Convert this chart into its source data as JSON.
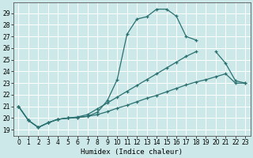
{
  "bg_color": "#cce8e8",
  "grid_color": "#b8d8d8",
  "line_color": "#2a7070",
  "xlabel": "Humidex (Indice chaleur)",
  "xlim": [
    -0.5,
    23.5
  ],
  "ylim": [
    18.5,
    29.9
  ],
  "x_ticks": [
    0,
    1,
    2,
    3,
    4,
    5,
    6,
    7,
    8,
    9,
    10,
    11,
    12,
    13,
    14,
    15,
    16,
    17,
    18,
    19,
    20,
    21,
    22,
    23
  ],
  "y_ticks": [
    19,
    20,
    21,
    22,
    23,
    24,
    25,
    26,
    27,
    28,
    29
  ],
  "line1_x": [
    0,
    1,
    2,
    3,
    4,
    5,
    6,
    7,
    8,
    9,
    10,
    11,
    12,
    13,
    14,
    15,
    16,
    17,
    18,
    19,
    20,
    21,
    22,
    23
  ],
  "line1_y": [
    21.0,
    19.8,
    19.2,
    19.6,
    19.9,
    20.0,
    20.05,
    20.15,
    20.5,
    21.5,
    23.3,
    27.2,
    28.5,
    28.7,
    29.35,
    29.35,
    28.75,
    27.0,
    26.7,
    null,
    null,
    null,
    null,
    null
  ],
  "line2_x": [
    0,
    1,
    2,
    3,
    4,
    5,
    6,
    7,
    8,
    9,
    10,
    11,
    12,
    13,
    14,
    15,
    16,
    17,
    18,
    19,
    20,
    21,
    22,
    23
  ],
  "line2_y": [
    21.0,
    19.8,
    19.2,
    19.6,
    19.9,
    20.0,
    20.1,
    20.3,
    20.8,
    21.3,
    21.8,
    22.3,
    22.8,
    23.3,
    23.8,
    24.3,
    24.8,
    25.3,
    25.7,
    null,
    25.7,
    24.7,
    23.2,
    23.0
  ],
  "line3_x": [
    0,
    1,
    2,
    3,
    4,
    5,
    6,
    7,
    8,
    9,
    10,
    11,
    12,
    13,
    14,
    15,
    16,
    17,
    18,
    19,
    20,
    21,
    22,
    23
  ],
  "line3_y": [
    21.0,
    19.8,
    19.2,
    19.6,
    19.9,
    20.0,
    20.05,
    20.15,
    20.3,
    20.55,
    20.85,
    21.1,
    21.4,
    21.7,
    21.95,
    22.25,
    22.55,
    22.85,
    23.1,
    23.3,
    23.55,
    23.8,
    23.0,
    23.0
  ]
}
